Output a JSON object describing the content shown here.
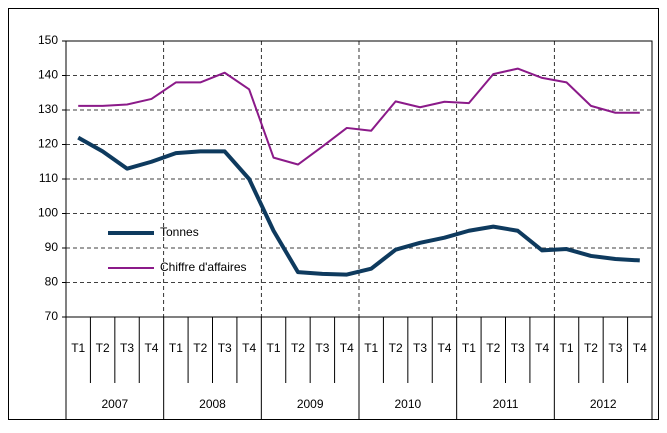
{
  "chart_data": {
    "type": "line",
    "categories": [
      "T1",
      "T2",
      "T3",
      "T4",
      "T1",
      "T2",
      "T3",
      "T4",
      "T1",
      "T2",
      "T3",
      "T4",
      "T1",
      "T2",
      "T3",
      "T4",
      "T1",
      "T2",
      "T3",
      "T4",
      "T1",
      "T2",
      "T3",
      "T4"
    ],
    "years": [
      "2007",
      "2008",
      "2009",
      "2010",
      "2011",
      "2012"
    ],
    "series": [
      {
        "name": "Tonnes",
        "color": "#0e3a5e",
        "values": [
          122,
          118,
          113,
          115,
          117.5,
          118,
          118,
          110,
          95,
          83,
          82.5,
          82.3,
          84,
          89.5,
          91.5,
          93,
          95,
          96.2,
          95,
          89.3,
          89.7,
          87.7,
          86.8,
          86.4
        ]
      },
      {
        "name": "Chiffre d'affaires",
        "color": "#8b1a89",
        "values": [
          131.2,
          131.2,
          131.6,
          133.2,
          138,
          138,
          140.8,
          136,
          116.2,
          114.2,
          119.4,
          124.8,
          124,
          132.5,
          130.8,
          132.4,
          132,
          140.4,
          142,
          139.3,
          138,
          131.2,
          129.2,
          129.2
        ]
      }
    ],
    "ylim": [
      70,
      150
    ],
    "yticks": [
      70,
      80,
      90,
      100,
      110,
      120,
      130,
      140,
      150
    ],
    "grid": true,
    "legend": "left"
  }
}
